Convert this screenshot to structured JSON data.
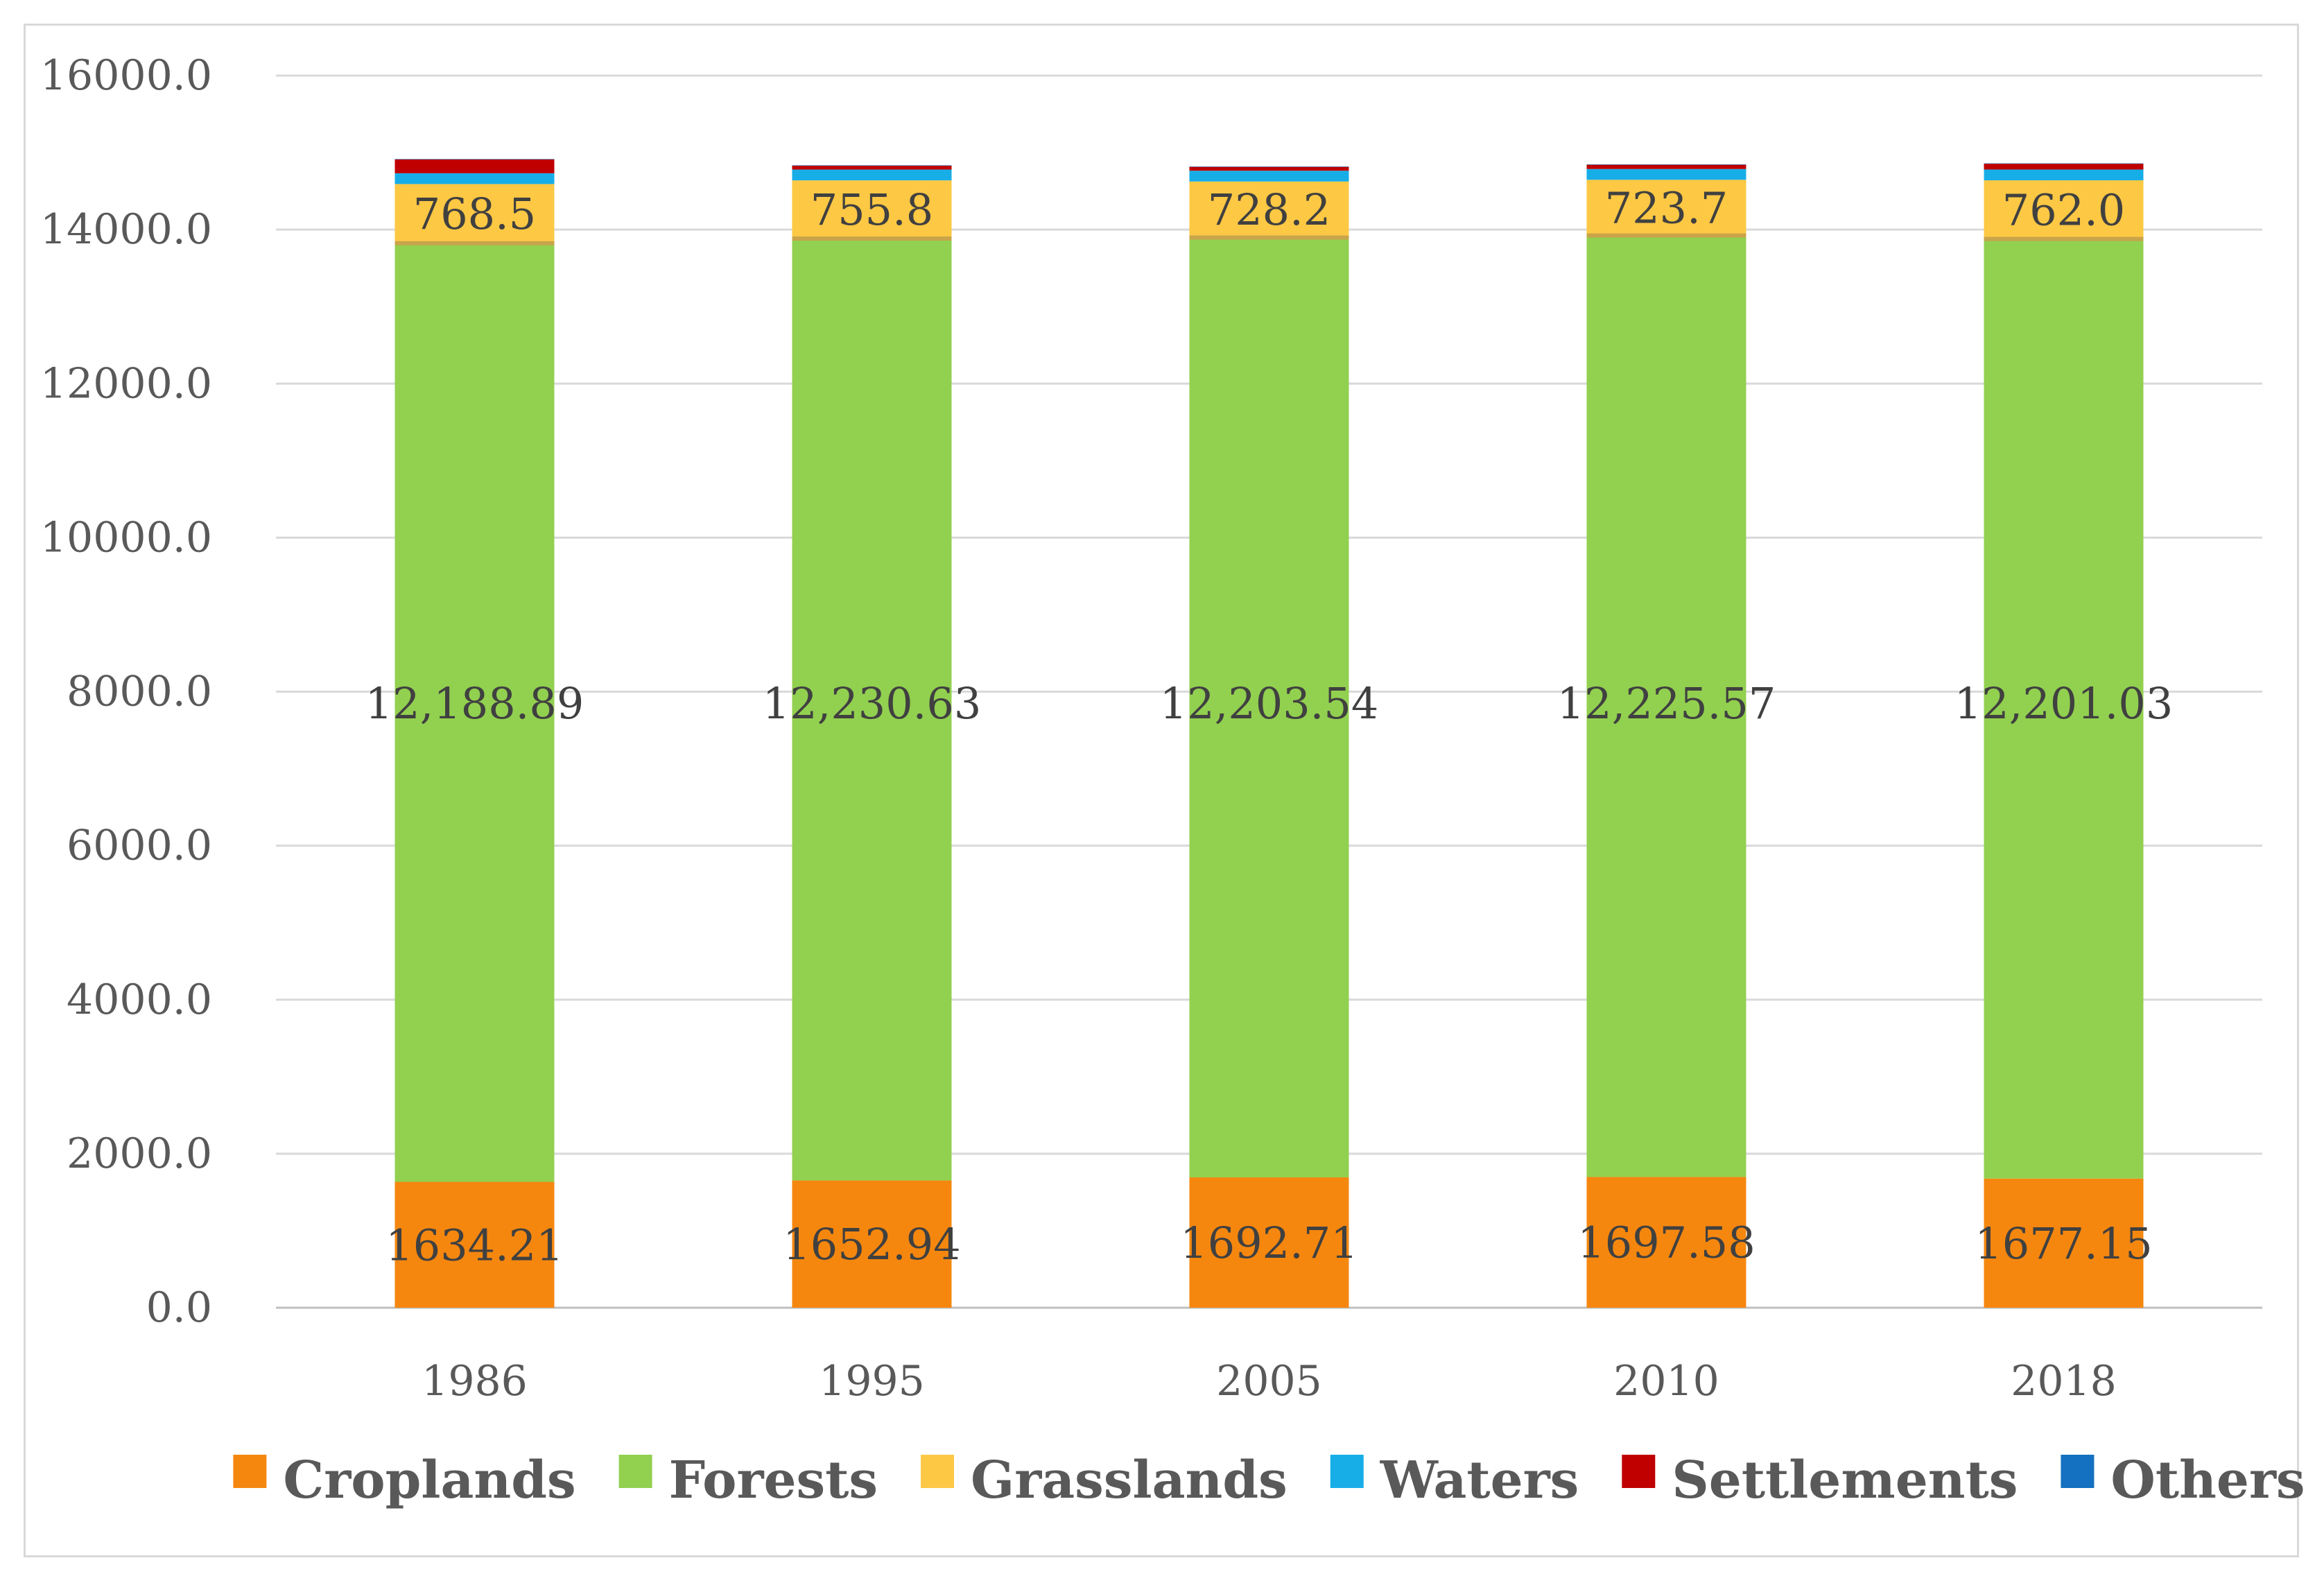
{
  "chart_data": {
    "type": "bar",
    "stacked": true,
    "categories": [
      "1986",
      "1995",
      "2005",
      "2010",
      "2018"
    ],
    "ylim": [
      0,
      16000
    ],
    "yticks": [
      "0.0",
      "2000.0",
      "4000.0",
      "6000.0",
      "8000.0",
      "10000.0",
      "12000.0",
      "14000.0",
      "16000.0"
    ],
    "ytick_values": [
      0,
      2000,
      4000,
      6000,
      8000,
      10000,
      12000,
      14000,
      16000
    ],
    "grid": true,
    "legend_position": "bottom",
    "series": [
      {
        "name": "Croplands",
        "color": "#f5870f",
        "values": [
          1634.21,
          1652.94,
          1692.71,
          1697.58,
          1677.15
        ],
        "labels": [
          "1634.21",
          "1652.94",
          "1692.71",
          "1697.58",
          "1677.15"
        ]
      },
      {
        "name": "Forests",
        "color": "#92d050",
        "values": [
          12188.89,
          12230.63,
          12203.54,
          12225.57,
          12201.03
        ],
        "labels": [
          "12,188.89",
          "12,230.63",
          "12,203.54",
          "12,225.57",
          "12,201.03"
        ]
      },
      {
        "name": "Grasslands",
        "color": "#fdc844",
        "values": [
          768.5,
          755.8,
          728.2,
          723.7,
          762.0
        ],
        "labels": [
          "768.5",
          "755.8",
          "728.2",
          "723.7",
          "762.0"
        ]
      },
      {
        "name": "Waters",
        "color": "#17aee8",
        "values": [
          140,
          140,
          140,
          140,
          140
        ],
        "labels": []
      },
      {
        "name": "Settlements",
        "color": "#c00000",
        "values": [
          180,
          50,
          50,
          55,
          75
        ],
        "labels": []
      },
      {
        "name": "Others",
        "color": "#1470c0",
        "values": [
          5,
          5,
          5,
          5,
          5
        ],
        "labels": []
      }
    ]
  }
}
